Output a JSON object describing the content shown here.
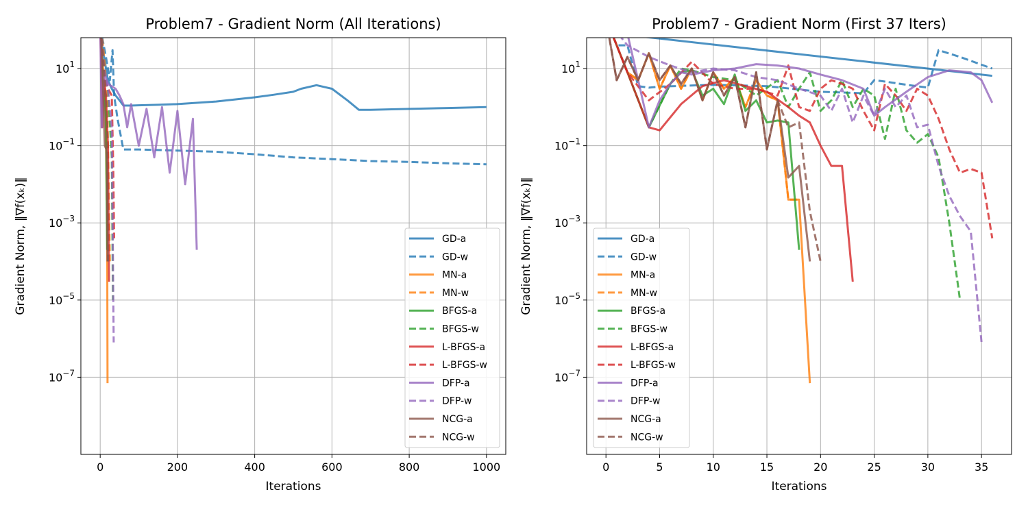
{
  "colors": {
    "GD": "#1f77b4",
    "MN": "#ff7f0e",
    "BFGS": "#2ca02c",
    "L-BFGS": "#d62728",
    "DFP": "#9467bd",
    "NCG": "#8c564b"
  },
  "legend_entries": [
    {
      "label": "GD-a",
      "color_key": "GD",
      "style": "solid"
    },
    {
      "label": "GD-w",
      "color_key": "GD",
      "style": "dashed"
    },
    {
      "label": "MN-a",
      "color_key": "MN",
      "style": "solid"
    },
    {
      "label": "MN-w",
      "color_key": "MN",
      "style": "dashed"
    },
    {
      "label": "BFGS-a",
      "color_key": "BFGS",
      "style": "solid"
    },
    {
      "label": "BFGS-w",
      "color_key": "BFGS",
      "style": "dashed"
    },
    {
      "label": "L-BFGS-a",
      "color_key": "L-BFGS",
      "style": "solid"
    },
    {
      "label": "L-BFGS-w",
      "color_key": "L-BFGS",
      "style": "dashed"
    },
    {
      "label": "DFP-a",
      "color_key": "DFP",
      "style": "solid"
    },
    {
      "label": "DFP-w",
      "color_key": "DFP",
      "style": "dashed"
    },
    {
      "label": "NCG-a",
      "color_key": "NCG",
      "style": "solid"
    },
    {
      "label": "NCG-w",
      "color_key": "NCG",
      "style": "dashed"
    }
  ],
  "chart_data": [
    {
      "type": "line",
      "title": "Problem7 - Gradient Norm (All Iterations)",
      "xlabel": "Iterations",
      "ylabel": "Gradient Norm, ‖∇f(xₖ)‖",
      "yscale": "log",
      "xlim": [
        -50,
        1050
      ],
      "ylim_exp": [
        -9,
        1.8
      ],
      "xticks": [
        0,
        200,
        400,
        600,
        800,
        1000
      ],
      "xtick_labels": [
        "0",
        "200",
        "400",
        "600",
        "800",
        "1000"
      ],
      "yticks_exp": [
        1,
        -1,
        -3,
        -5,
        -7
      ],
      "ytick_labels": [
        "10^1",
        "10^-1",
        "10^-3",
        "10^-5",
        "10^-7"
      ],
      "grid": true,
      "legend_position": "lower-right",
      "series": [
        {
          "name": "GD-a",
          "color_key": "GD",
          "style": "solid",
          "x": [
            0,
            10,
            20,
            30,
            40,
            50,
            60,
            80,
            100,
            150,
            200,
            300,
            400,
            450,
            500,
            520,
            560,
            600,
            640,
            670,
            700,
            800,
            900,
            1000
          ],
          "y": [
            80,
            20,
            5,
            3,
            2,
            1.5,
            1.1,
            1.1,
            1.12,
            1.15,
            1.2,
            1.4,
            1.8,
            2.1,
            2.5,
            3,
            3.7,
            3,
            1.5,
            0.85,
            0.85,
            0.9,
            0.95,
            1.0
          ]
        },
        {
          "name": "GD-w",
          "color_key": "GD",
          "style": "dashed",
          "x": [
            0,
            15,
            25,
            32,
            36,
            45,
            60,
            100,
            200,
            300,
            400,
            500,
            600,
            700,
            800,
            900,
            1000
          ],
          "y": [
            120,
            20,
            5,
            30,
            2,
            0.5,
            0.08,
            0.08,
            0.075,
            0.07,
            0.06,
            0.05,
            0.045,
            0.04,
            0.038,
            0.035,
            0.033
          ]
        },
        {
          "name": "MN-a",
          "color_key": "MN",
          "style": "solid",
          "x": [
            0,
            5,
            10,
            14,
            17,
            18,
            19
          ],
          "y": [
            200,
            20,
            5,
            1,
            0.004,
            0.004,
            7e-08
          ]
        },
        {
          "name": "MN-w",
          "color_key": "MN",
          "style": "dashed",
          "x": [
            0,
            10,
            18,
            22,
            25
          ],
          "y": [
            200,
            20,
            2,
            0.01,
            0.0001
          ]
        },
        {
          "name": "BFGS-a",
          "color_key": "BFGS",
          "style": "solid",
          "x": [
            0,
            5,
            10,
            15,
            18
          ],
          "y": [
            200,
            5,
            3,
            0.5,
            0.0002
          ]
        },
        {
          "name": "BFGS-w",
          "color_key": "BFGS",
          "style": "dashed",
          "x": [
            0,
            10,
            20,
            30,
            33
          ],
          "y": [
            200,
            8,
            3,
            0.05,
            1e-05
          ]
        },
        {
          "name": "L-BFGS-a",
          "color_key": "L-BFGS",
          "style": "solid",
          "x": [
            0,
            5,
            10,
            15,
            20,
            23
          ],
          "y": [
            200,
            0.3,
            5,
            2,
            0.1,
            3e-05
          ]
        },
        {
          "name": "L-BFGS-w",
          "color_key": "L-BFGS",
          "style": "dashed",
          "x": [
            0,
            10,
            20,
            30,
            34,
            36
          ],
          "y": [
            200,
            8,
            3,
            2,
            0.025,
            0.0004
          ]
        },
        {
          "name": "DFP-a",
          "color_key": "DFP",
          "style": "solid",
          "x": [
            0,
            4,
            10,
            20,
            40,
            50,
            60,
            70,
            80,
            100,
            120,
            140,
            160,
            180,
            200,
            220,
            240,
            250
          ],
          "y": [
            200,
            0.3,
            8,
            4,
            3,
            2,
            1.2,
            0.3,
            1.2,
            0.1,
            0.9,
            0.05,
            1.0,
            0.02,
            0.8,
            0.01,
            0.5,
            0.0002
          ]
        },
        {
          "name": "DFP-w",
          "color_key": "DFP",
          "style": "dashed",
          "x": [
            0,
            10,
            20,
            30,
            35
          ],
          "y": [
            200,
            10,
            3,
            0.3,
            8e-07
          ]
        },
        {
          "name": "NCG-a",
          "color_key": "NCG",
          "style": "solid",
          "x": [
            0,
            4,
            8,
            12,
            16,
            18,
            19
          ],
          "y": [
            200,
            30,
            2,
            0.1,
            0.08,
            0.03,
            0.0001
          ]
        },
        {
          "name": "NCG-w",
          "color_key": "NCG",
          "style": "dashed",
          "x": [
            0,
            10,
            18,
            20
          ],
          "y": [
            200,
            10,
            0.4,
            0.0001
          ]
        }
      ]
    },
    {
      "type": "line",
      "title": "Problem7 - Gradient Norm (First 37 Iters)",
      "xlabel": "Iterations",
      "ylabel": "Gradient Norm, ‖∇f(xₖ)‖",
      "yscale": "log",
      "xlim": [
        -1.8,
        37.8
      ],
      "ylim_exp": [
        -9,
        1.8
      ],
      "xticks": [
        0,
        5,
        10,
        15,
        20,
        25,
        30,
        35
      ],
      "xtick_labels": [
        "0",
        "5",
        "10",
        "15",
        "20",
        "25",
        "30",
        "35"
      ],
      "yticks_exp": [
        1,
        -1,
        -3,
        -5,
        -7
      ],
      "ytick_labels": [
        "10^1",
        "10^-1",
        "10^-3",
        "10^-5",
        "10^-7"
      ],
      "grid": true,
      "legend_position": "lower-left",
      "series": [
        {
          "name": "GD-a",
          "color_key": "GD",
          "style": "solid",
          "x": [
            0,
            1,
            36
          ],
          "y": [
            200,
            80,
            6.5
          ]
        },
        {
          "name": "GD-w",
          "color_key": "GD",
          "style": "dashed",
          "x": [
            0,
            1,
            2,
            3,
            4,
            5,
            10,
            15,
            20,
            24,
            25,
            26,
            28,
            30,
            31,
            33,
            36
          ],
          "y": [
            200,
            40,
            40,
            3.5,
            3.2,
            3.4,
            3.8,
            3.5,
            2.5,
            2.3,
            5,
            4.6,
            3.8,
            3.2,
            30,
            20,
            10
          ]
        },
        {
          "name": "MN-a",
          "color_key": "MN",
          "style": "solid",
          "x": [
            0,
            1,
            2,
            3,
            4,
            5,
            6,
            7,
            8,
            9,
            10,
            11,
            12,
            13,
            14,
            15,
            16,
            17,
            18,
            19
          ],
          "y": [
            200,
            40,
            8,
            5,
            25,
            3,
            12,
            3,
            10,
            1.5,
            8,
            3,
            6,
            1,
            5,
            2,
            1.5,
            0.004,
            0.004,
            7e-08
          ]
        },
        {
          "name": "MN-w",
          "color_key": "MN",
          "style": "dashed",
          "x": [
            0,
            1,
            2,
            3,
            4,
            5,
            6,
            7,
            8,
            9,
            10,
            11,
            12,
            13,
            14,
            15,
            16,
            17,
            18
          ],
          "y": [
            200,
            40,
            8,
            5,
            25,
            3,
            12,
            3,
            10,
            1.5,
            8,
            3,
            6,
            1,
            5,
            2,
            1.5,
            0.004,
            0.004
          ]
        },
        {
          "name": "BFGS-a",
          "color_key": "BFGS",
          "style": "solid",
          "x": [
            0,
            2,
            4,
            6,
            7,
            8,
            9,
            10,
            11,
            12,
            13,
            14,
            15,
            16,
            17,
            18
          ],
          "y": [
            200,
            8,
            0.3,
            4,
            8,
            9,
            2,
            3,
            1.2,
            7,
            0.8,
            1.5,
            0.4,
            0.45,
            0.4,
            0.0002
          ]
        },
        {
          "name": "BFGS-w",
          "color_key": "BFGS",
          "style": "dashed",
          "x": [
            0,
            2,
            4,
            6,
            7,
            8,
            10,
            12,
            14,
            16,
            17,
            18,
            19,
            20,
            21,
            22,
            23,
            24,
            25,
            26,
            27,
            28,
            29,
            30,
            31,
            32,
            33
          ],
          "y": [
            200,
            8,
            0.3,
            4,
            10,
            9,
            6,
            5,
            2,
            5,
            1,
            3,
            8,
            0.8,
            1.5,
            5,
            1,
            3,
            2,
            0.15,
            3,
            0.25,
            0.12,
            0.2,
            0.05,
            0.001,
            1e-05
          ]
        },
        {
          "name": "L-BFGS-a",
          "color_key": "L-BFGS",
          "style": "solid",
          "x": [
            0,
            2,
            4,
            5,
            7,
            9,
            11,
            13,
            15,
            17,
            18,
            19,
            20,
            21,
            22,
            23
          ],
          "y": [
            200,
            8,
            0.3,
            0.25,
            1.2,
            3.5,
            5,
            3.5,
            2.5,
            1,
            0.6,
            0.4,
            0.1,
            0.03,
            0.03,
            3e-05
          ]
        },
        {
          "name": "L-BFGS-w",
          "color_key": "L-BFGS",
          "style": "dashed",
          "x": [
            0,
            2,
            4,
            6,
            8,
            10,
            12,
            14,
            16,
            17,
            18,
            19,
            20,
            21,
            22,
            23,
            24,
            25,
            26,
            27,
            28,
            29,
            30,
            31,
            32,
            33,
            34,
            35,
            36
          ],
          "y": [
            200,
            8,
            1.5,
            4,
            15,
            4,
            3,
            3,
            2,
            12,
            1,
            0.8,
            3,
            5,
            4,
            3,
            0.8,
            0.25,
            4,
            2,
            0.8,
            3,
            2,
            0.5,
            0.08,
            0.02,
            0.025,
            0.02,
            0.0004
          ]
        },
        {
          "name": "DFP-a",
          "color_key": "DFP",
          "style": "solid",
          "x": [
            0,
            1,
            2,
            3,
            4,
            5,
            6,
            7,
            8,
            10,
            12,
            14,
            16,
            18,
            20,
            22,
            24,
            25,
            26,
            28,
            30,
            32,
            34,
            35,
            36
          ],
          "y": [
            200,
            80,
            80,
            5,
            0.3,
            1.5,
            4,
            8,
            7,
            9,
            10,
            13,
            12,
            10,
            7,
            5,
            3,
            0.6,
            1,
            2.5,
            6,
            9,
            8,
            5,
            1.3
          ]
        },
        {
          "name": "DFP-w",
          "color_key": "DFP",
          "style": "dashed",
          "x": [
            0,
            2,
            4,
            6,
            8,
            10,
            12,
            14,
            16,
            18,
            20,
            21,
            22,
            23,
            24,
            25,
            26,
            27,
            28,
            29,
            30,
            31,
            32,
            33,
            34,
            35
          ],
          "y": [
            200,
            40,
            20,
            12,
            8,
            10,
            9,
            6,
            5,
            3,
            2,
            0.8,
            3,
            0.4,
            2,
            0.6,
            3,
            1,
            2,
            0.3,
            0.35,
            0.03,
            0.005,
            0.0015,
            0.0006,
            8e-07
          ]
        },
        {
          "name": "NCG-a",
          "color_key": "NCG",
          "style": "solid",
          "x": [
            0,
            1,
            2,
            3,
            4,
            5,
            6,
            7,
            8,
            9,
            10,
            11,
            12,
            13,
            14,
            15,
            16,
            17,
            18,
            19
          ],
          "y": [
            200,
            5,
            20,
            5,
            25,
            5,
            12,
            4,
            10,
            1.5,
            8,
            2,
            6,
            0.3,
            8,
            0.08,
            1.5,
            0.015,
            0.03,
            0.0001
          ]
        },
        {
          "name": "NCG-w",
          "color_key": "NCG",
          "style": "dashed",
          "x": [
            0,
            1,
            2,
            3,
            4,
            5,
            6,
            7,
            8,
            9,
            10,
            11,
            12,
            13,
            14,
            15,
            16,
            17,
            18,
            19,
            20
          ],
          "y": [
            200,
            5,
            20,
            5,
            25,
            5,
            12,
            4,
            10,
            1.5,
            8,
            2,
            6,
            0.3,
            8,
            0.08,
            1.5,
            0.3,
            0.4,
            0.002,
            0.0001
          ]
        }
      ]
    }
  ]
}
